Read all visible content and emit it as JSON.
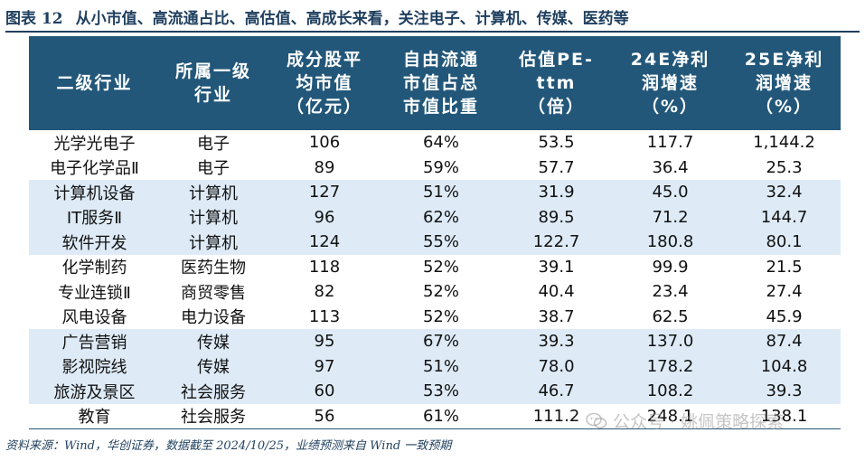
{
  "figure": {
    "label": "图表 12",
    "title": "从小市值、高流通占比、高估值、高成长来看，关注电子、计算机、传媒、医药等"
  },
  "table": {
    "headers": [
      "二级行业",
      "所属一级\n行业",
      "成分股平\n均市值\n（亿元）",
      "自由流通\n市值占总\n市值比重",
      "估值PE-ttm\n（倍）",
      "24E净利\n润增速\n（%）",
      "25E净利\n润增速\n（%）"
    ],
    "rows": [
      [
        "光学光电子",
        "电子",
        "106",
        "64%",
        "53.5",
        "117.7",
        "1,144.2"
      ],
      [
        "电子化学品Ⅱ",
        "电子",
        "89",
        "59%",
        "57.7",
        "36.4",
        "25.3"
      ],
      [
        "计算机设备",
        "计算机",
        "127",
        "51%",
        "31.9",
        "45.0",
        "32.4"
      ],
      [
        "IT服务Ⅱ",
        "计算机",
        "96",
        "62%",
        "89.5",
        "71.2",
        "144.7"
      ],
      [
        "软件开发",
        "计算机",
        "124",
        "55%",
        "122.7",
        "180.8",
        "80.1"
      ],
      [
        "化学制药",
        "医药生物",
        "118",
        "52%",
        "39.1",
        "99.9",
        "21.5"
      ],
      [
        "专业连锁Ⅱ",
        "商贸零售",
        "82",
        "52%",
        "40.4",
        "23.4",
        "27.4"
      ],
      [
        "风电设备",
        "电力设备",
        "113",
        "52%",
        "38.7",
        "62.5",
        "45.9"
      ],
      [
        "广告营销",
        "传媒",
        "95",
        "67%",
        "39.3",
        "137.0",
        "87.4"
      ],
      [
        "影视院线",
        "传媒",
        "97",
        "51%",
        "78.0",
        "178.2",
        "104.8"
      ],
      [
        "旅游及景区",
        "社会服务",
        "60",
        "53%",
        "46.7",
        "108.2",
        "39.3"
      ],
      [
        "教育",
        "社会服务",
        "56",
        "61%",
        "111.2",
        "248.1",
        "138.1"
      ]
    ],
    "shaded_rows": [
      2,
      3,
      4,
      8,
      9,
      10
    ],
    "header_color": "#22577a",
    "shade_color": "#deebf7"
  },
  "source": "资料来源：Wind，华创证券，数据截至 2024/10/25，业绩预测来自 Wind 一致预期",
  "watermark": {
    "text": "公众号 · 姚佩策略探索",
    "icon": "wechat-icon"
  }
}
